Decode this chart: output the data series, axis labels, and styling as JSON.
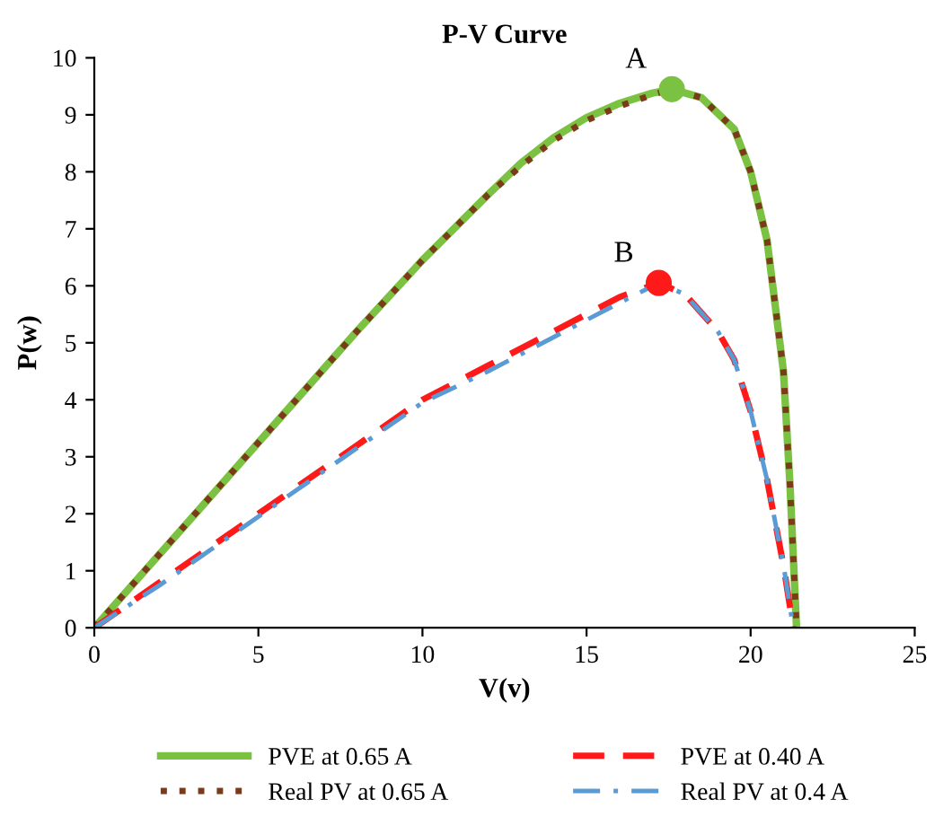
{
  "chart_data": {
    "type": "line",
    "title": "P-V Curve",
    "xlabel": "V(v)",
    "ylabel": "P(w)",
    "xlim": [
      0,
      25
    ],
    "xticks": [
      0,
      5,
      10,
      15,
      20,
      25
    ],
    "ylim": [
      0,
      10
    ],
    "yticks": [
      0,
      1,
      2,
      3,
      4,
      5,
      6,
      7,
      8,
      9,
      10
    ],
    "grid": false,
    "legend": "bottom",
    "series": [
      {
        "name": "PVE at 0.65 A",
        "color": "#7cc242",
        "line_style": "solid",
        "x": [
          0,
          2,
          4,
          6,
          8,
          10,
          12,
          13,
          14,
          15,
          16,
          17,
          17.6,
          18.5,
          19.5,
          20,
          20.5,
          21,
          21.2,
          21.4
        ],
        "values": [
          0,
          1.3,
          2.6,
          3.9,
          5.2,
          6.45,
          7.6,
          8.15,
          8.6,
          8.95,
          9.2,
          9.38,
          9.45,
          9.3,
          8.75,
          8.0,
          6.8,
          4.5,
          2.5,
          0
        ]
      },
      {
        "name": "Real PV at 0.65 A",
        "color": "#7b3a1a",
        "line_style": "dotted",
        "x": [
          0,
          2,
          4,
          6,
          8,
          10,
          12,
          13,
          14,
          15,
          16,
          17,
          17.6,
          18.5,
          19.5,
          20,
          20.5,
          21,
          21.2,
          21.4
        ],
        "values": [
          0,
          1.3,
          2.6,
          3.9,
          5.2,
          6.45,
          7.6,
          8.1,
          8.55,
          8.9,
          9.15,
          9.35,
          9.45,
          9.3,
          8.75,
          8.0,
          6.8,
          4.5,
          2.5,
          0
        ]
      },
      {
        "name": "PVE at 0.40 A",
        "color": "#ff1a1a",
        "line_style": "dashed",
        "x": [
          0,
          2,
          4,
          6,
          8,
          10,
          12,
          14,
          15,
          16,
          17.2,
          18,
          19,
          19.5,
          20,
          20.5,
          21,
          21.3
        ],
        "values": [
          0,
          0.8,
          1.6,
          2.4,
          3.2,
          4.0,
          4.6,
          5.2,
          5.5,
          5.8,
          6.05,
          5.85,
          5.2,
          4.7,
          3.8,
          2.6,
          1.1,
          0
        ]
      },
      {
        "name": "Real PV at 0.4 A",
        "color": "#5b9bd5",
        "line_style": "dashdot",
        "x": [
          0,
          2,
          4,
          6,
          8,
          10,
          12,
          14,
          15,
          16,
          17.2,
          18,
          19,
          19.5,
          20,
          20.5,
          21,
          21.3
        ],
        "values": [
          0,
          0.75,
          1.55,
          2.35,
          3.15,
          3.95,
          4.5,
          5.1,
          5.4,
          5.7,
          6.05,
          5.85,
          5.2,
          4.7,
          3.8,
          2.6,
          1.1,
          0
        ]
      },
      {
        "type": "scatter",
        "color": "#7cc242",
        "x": [
          17.6
        ],
        "values": [
          9.45
        ]
      },
      {
        "type": "scatter",
        "color": "#ff1a1a",
        "x": [
          17.2
        ],
        "values": [
          6.05
        ]
      }
    ],
    "annotations": [
      {
        "text": "A",
        "x": 17.6,
        "y": 9.45
      },
      {
        "text": "B",
        "x": 17.2,
        "y": 6.05
      }
    ]
  }
}
